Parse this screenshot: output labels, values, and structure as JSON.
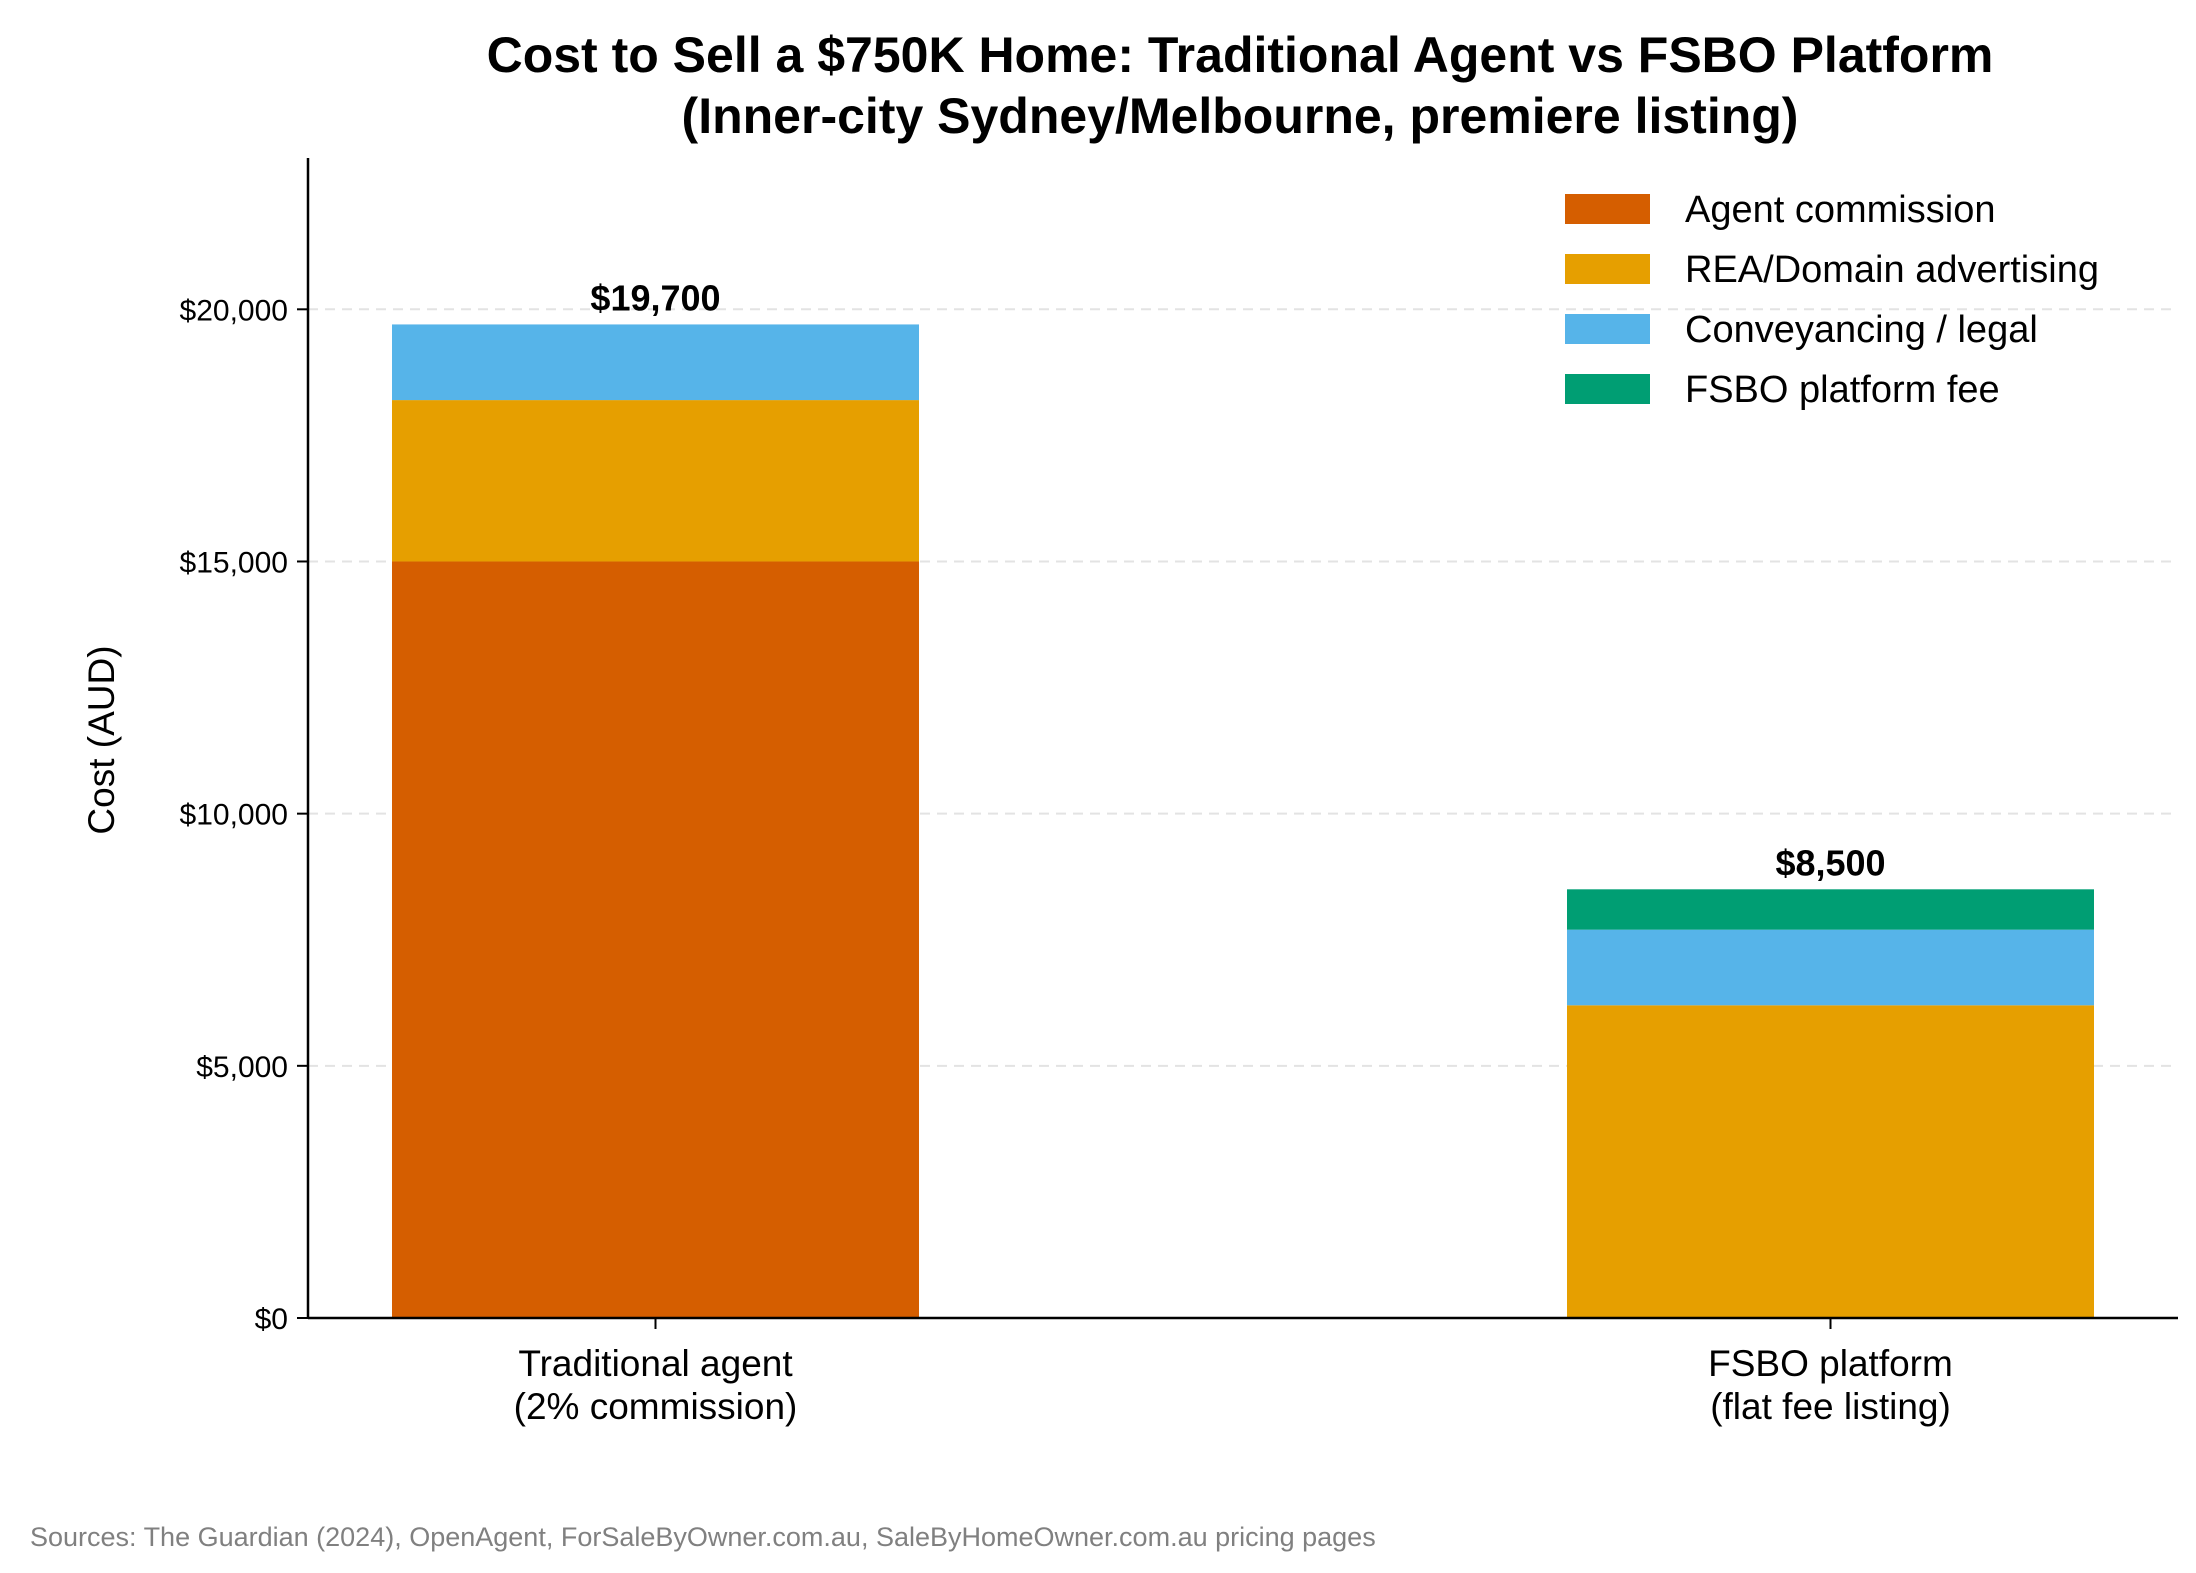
{
  "chart_data": {
    "type": "bar",
    "stacked": true,
    "title": "Cost to Sell a $750K Home: Traditional Agent vs FSBO Platform",
    "subtitle": "(Inner-city Sydney/Melbourne, premiere listing)",
    "ylabel": "Cost (AUD)",
    "xlabel": "",
    "ylim": [
      0,
      23000
    ],
    "yticks": [
      0,
      5000,
      10000,
      15000,
      20000
    ],
    "ytick_labels": [
      "$0",
      "$5,000",
      "$10,000",
      "$15,000",
      "$20,000"
    ],
    "grid": "horizontal dashed",
    "legend_position": "top-right",
    "categories": [
      [
        "Traditional agent",
        "(2% commission)"
      ],
      [
        "FSBO platform",
        "(flat fee listing)"
      ]
    ],
    "series": [
      {
        "name": "Agent commission",
        "color": "#d55e00",
        "values": [
          15000,
          0
        ]
      },
      {
        "name": "REA/Domain advertising",
        "color": "#e69f00",
        "values": [
          3200,
          6200
        ]
      },
      {
        "name": "Conveyancing / legal",
        "color": "#56b4e9",
        "values": [
          1500,
          1500
        ]
      },
      {
        "name": "FSBO platform fee",
        "color": "#009e73",
        "values": [
          0,
          800
        ]
      }
    ],
    "totals": [
      19700,
      8500
    ],
    "total_labels": [
      "$19,700",
      "$8,500"
    ],
    "source_note": "Sources: The Guardian (2024), OpenAgent, ForSaleByOwner.com.au, SaleByHomeOwner.com.au pricing pages"
  }
}
